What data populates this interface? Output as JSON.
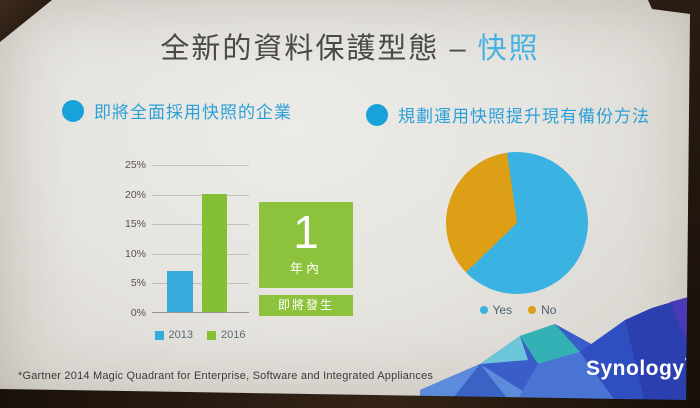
{
  "slide": {
    "title": {
      "main": "全新的資料保護型態 –",
      "accent": "快照"
    },
    "sections": [
      {
        "heading": "即將全面採用快照的企業"
      },
      {
        "heading": "規劃運用快照提升現有備份方法"
      }
    ],
    "callout": {
      "number": "1",
      "unit": "年內",
      "caption": "即將發生"
    },
    "footnote": "*Gartner 2014 Magic Quadrant for Enterprise, Software and Integrated Appliances",
    "brand": {
      "logo": "Synology",
      "mark": "’"
    }
  },
  "chart_data": [
    {
      "type": "bar",
      "title": "即將全面採用快照的企業",
      "categories": [
        "2013",
        "2016"
      ],
      "values": [
        7,
        20
      ],
      "value_unit": "%",
      "ylim": [
        0,
        25
      ],
      "yticks": [
        "0%",
        "5%",
        "10%",
        "15%",
        "20%",
        "25%"
      ],
      "grid": true,
      "legend_position": "bottom",
      "colors": {
        "2013": "#36a9dd",
        "2016": "#85bf35"
      }
    },
    {
      "type": "pie",
      "title": "規劃運用快照提升現有備份方法",
      "labels": [
        "Yes",
        "No"
      ],
      "values": [
        65,
        35
      ],
      "start_angle_deg": -8,
      "legend_position": "bottom",
      "colors": {
        "Yes": "#3ab2e2",
        "No": "#dd9f16"
      }
    }
  ],
  "palette": {
    "title_gray": "#4a4947",
    "accent_blue": "#46b2e3",
    "heading_blue": "#2da0d8",
    "bullet_blue": "#18a2da",
    "green": "#8cc23c",
    "slide_bg": "#e6e4df",
    "frame_dark": "#1b120c"
  }
}
